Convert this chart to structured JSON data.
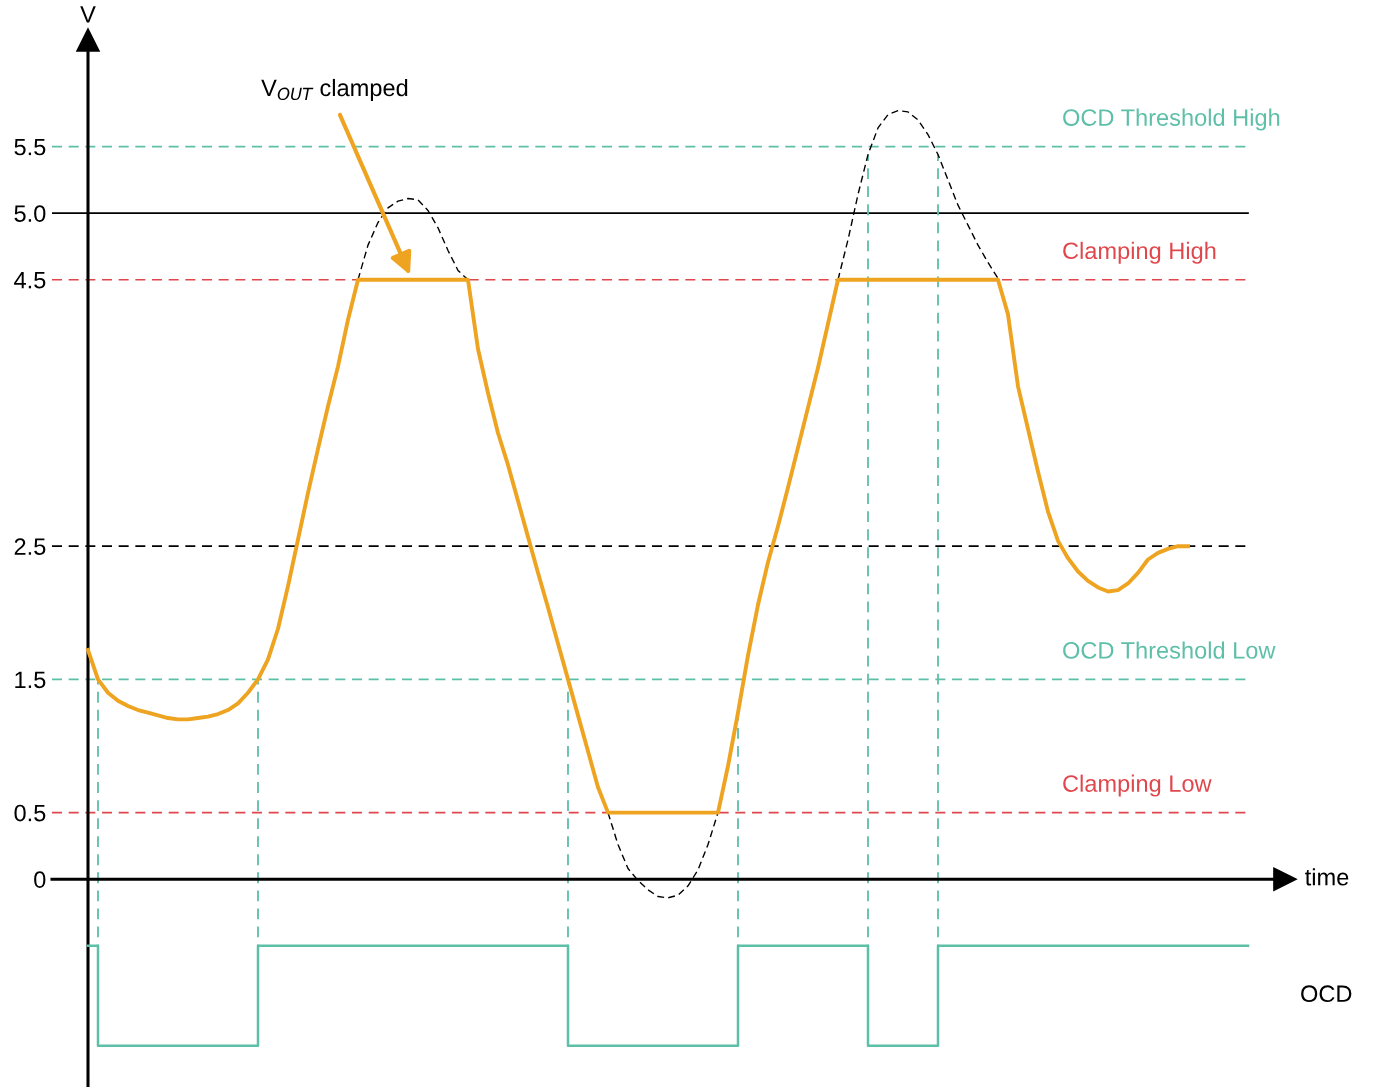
{
  "chart_data": {
    "type": "line",
    "categories": [
      null,
      null,
      null,
      null,
      null,
      null,
      null,
      null,
      null,
      null,
      null,
      null,
      null,
      null,
      null,
      null,
      null,
      null,
      null,
      null,
      null,
      null,
      null,
      null,
      null,
      null,
      null,
      null,
      null,
      null,
      null,
      null,
      null,
      null,
      null,
      null,
      null,
      null,
      null,
      null,
      null,
      null,
      null,
      null,
      null,
      null,
      null,
      null,
      null,
      null,
      null,
      null,
      null,
      null,
      null,
      null,
      null,
      null,
      null,
      null,
      null,
      null,
      null,
      null,
      null,
      null,
      null,
      null,
      null,
      null,
      null,
      null,
      null,
      null,
      null,
      null,
      null,
      null,
      null,
      null,
      null,
      null,
      null,
      null,
      null,
      null,
      null,
      null,
      null,
      null,
      null,
      null,
      null,
      null,
      null,
      null,
      null,
      null,
      null,
      null,
      null,
      null,
      null,
      null,
      null,
      null,
      null,
      null,
      null,
      null,
      null,
      null,
      null,
      null,
      null,
      null,
      null
    ],
    "series": [
      {
        "color": "#eea321",
        "values": [
          1.72,
          1.5,
          1.4,
          1.34,
          1.3,
          1.27,
          1.25,
          1.23,
          1.21,
          1.2,
          1.2,
          1.21,
          1.22,
          1.24,
          1.27,
          1.32,
          1.4,
          1.5,
          1.65,
          1.88,
          2.2,
          2.55,
          2.9,
          3.23,
          3.55,
          3.85,
          4.2,
          4.5,
          4.5,
          4.5,
          4.5,
          4.5,
          4.5,
          4.5,
          4.5,
          4.5,
          4.5,
          4.5,
          4.5,
          3.98,
          3.65,
          3.35,
          3.11,
          2.84,
          2.57,
          2.3,
          2.04,
          1.77,
          1.5,
          1.23,
          0.96,
          0.69,
          0.5,
          0.5,
          0.5,
          0.5,
          0.5,
          0.5,
          0.5,
          0.5,
          0.5,
          0.5,
          0.5,
          0.5,
          0.85,
          1.25,
          1.68,
          2.06,
          2.38,
          2.65,
          2.94,
          3.24,
          3.54,
          3.84,
          4.17,
          4.5,
          4.5,
          4.5,
          4.5,
          4.5,
          4.5,
          4.5,
          4.5,
          4.5,
          4.5,
          4.5,
          4.5,
          4.5,
          4.5,
          4.5,
          4.5,
          4.5,
          4.24,
          3.7,
          3.38,
          3.06,
          2.76,
          2.54,
          2.41,
          2.31,
          2.24,
          2.19,
          2.16,
          2.17,
          2.22,
          2.3,
          2.4,
          2.45,
          2.48,
          2.5,
          2.5,
          null,
          null,
          null,
          null,
          null,
          null
        ]
      },
      {
        "color": "#000000",
        "line_style": "dashed",
        "values": [
          null,
          null,
          null,
          null,
          null,
          null,
          null,
          null,
          null,
          null,
          null,
          null,
          null,
          null,
          null,
          null,
          null,
          null,
          null,
          null,
          null,
          null,
          null,
          null,
          null,
          null,
          null,
          4.5,
          4.76,
          4.93,
          5.04,
          5.09,
          5.11,
          5.1,
          5.02,
          4.89,
          4.72,
          4.57,
          4.5,
          null,
          null,
          null,
          null,
          null,
          null,
          null,
          null,
          null,
          null,
          null,
          null,
          null,
          0.5,
          0.26,
          0.08,
          -0.01,
          -0.08,
          -0.13,
          -0.14,
          -0.12,
          -0.05,
          0.07,
          0.26,
          0.5,
          null,
          null,
          null,
          null,
          null,
          null,
          null,
          null,
          null,
          null,
          null,
          4.5,
          4.8,
          5.14,
          5.44,
          5.64,
          5.74,
          5.77,
          5.76,
          5.7,
          5.59,
          5.44,
          5.25,
          5.06,
          4.91,
          4.76,
          4.63,
          4.51,
          null,
          null,
          null,
          null,
          null,
          null,
          null,
          null,
          null,
          null,
          null,
          null,
          null,
          null,
          null,
          null,
          null,
          null,
          null,
          null,
          null,
          null,
          null,
          null,
          null
        ]
      },
      {
        "name": "OCD",
        "type": "step",
        "color": "#5dbfa8",
        "values": [
          -0.5,
          -1.25,
          -1.25,
          -1.25,
          -1.25,
          -1.25,
          -1.25,
          -1.25,
          -1.25,
          -1.25,
          -1.25,
          -1.25,
          -1.25,
          -1.25,
          -1.25,
          -1.25,
          -1.25,
          -0.5,
          -0.5,
          -0.5,
          -0.5,
          -0.5,
          -0.5,
          -0.5,
          -0.5,
          -0.5,
          -0.5,
          -0.5,
          -0.5,
          -0.5,
          -0.5,
          -0.5,
          -0.5,
          -0.5,
          -0.5,
          -0.5,
          -0.5,
          -0.5,
          -0.5,
          -0.5,
          -0.5,
          -0.5,
          -0.5,
          -0.5,
          -0.5,
          -0.5,
          -0.5,
          -0.5,
          -1.25,
          -1.25,
          -1.25,
          -1.25,
          -1.25,
          -1.25,
          -1.25,
          -1.25,
          -1.25,
          -1.25,
          -1.25,
          -1.25,
          -1.25,
          -1.25,
          -1.25,
          -1.25,
          -1.25,
          -0.5,
          -0.5,
          -0.5,
          -0.5,
          -0.5,
          -0.5,
          -0.5,
          -0.5,
          -0.5,
          -0.5,
          -0.5,
          -0.5,
          -0.5,
          -1.25,
          -1.25,
          -1.25,
          -1.25,
          -1.25,
          -1.25,
          -1.25,
          -0.5,
          -0.5,
          -0.5,
          -0.5,
          -0.5,
          -0.5,
          -0.5,
          -0.5,
          -0.5,
          -0.5,
          -0.5,
          -0.5,
          -0.5,
          -0.5,
          -0.5,
          -0.5,
          -0.5,
          -0.5,
          -0.5,
          -0.5,
          -0.5,
          -0.5,
          -0.5,
          -0.5,
          -0.5,
          -0.5,
          -0.5,
          -0.5,
          -0.5,
          -0.5,
          -0.5,
          -0.5
        ]
      }
    ],
    "ylim": [
      -1.56,
      6.3
    ],
    "yticks": [
      0,
      0.5,
      1.5,
      2.5,
      4.5,
      {
        "value": 5,
        "label": "5.0"
      },
      5.5
    ],
    "ylabel": "V",
    "xlabel": "time",
    "tick_labels": "y",
    "ref_lines": [
      {
        "axis": "y",
        "value": 5.5,
        "label": "OCD Threshold High",
        "color": "#5dbfa8",
        "line_style": "dashed"
      },
      {
        "axis": "y",
        "value": 5,
        "color": "#000000",
        "line_style": "solid"
      },
      {
        "axis": "y",
        "value": 4.5,
        "label": "Clamping High",
        "color": "#e0474c",
        "line_style": "dashed"
      },
      {
        "axis": "y",
        "value": 2.5,
        "color": "#000000",
        "line_style": "dashed"
      },
      {
        "axis": "y",
        "value": 1.5,
        "label": "OCD Threshold Low",
        "color": "#5dbfa8",
        "line_style": "dashed"
      },
      {
        "axis": "y",
        "value": 0.5,
        "label": "Clamping Low",
        "color": "#e0474c",
        "line_style": "dashed"
      }
    ],
    "annotations": [
      "V$_{OUT}$ clamped"
    ]
  }
}
